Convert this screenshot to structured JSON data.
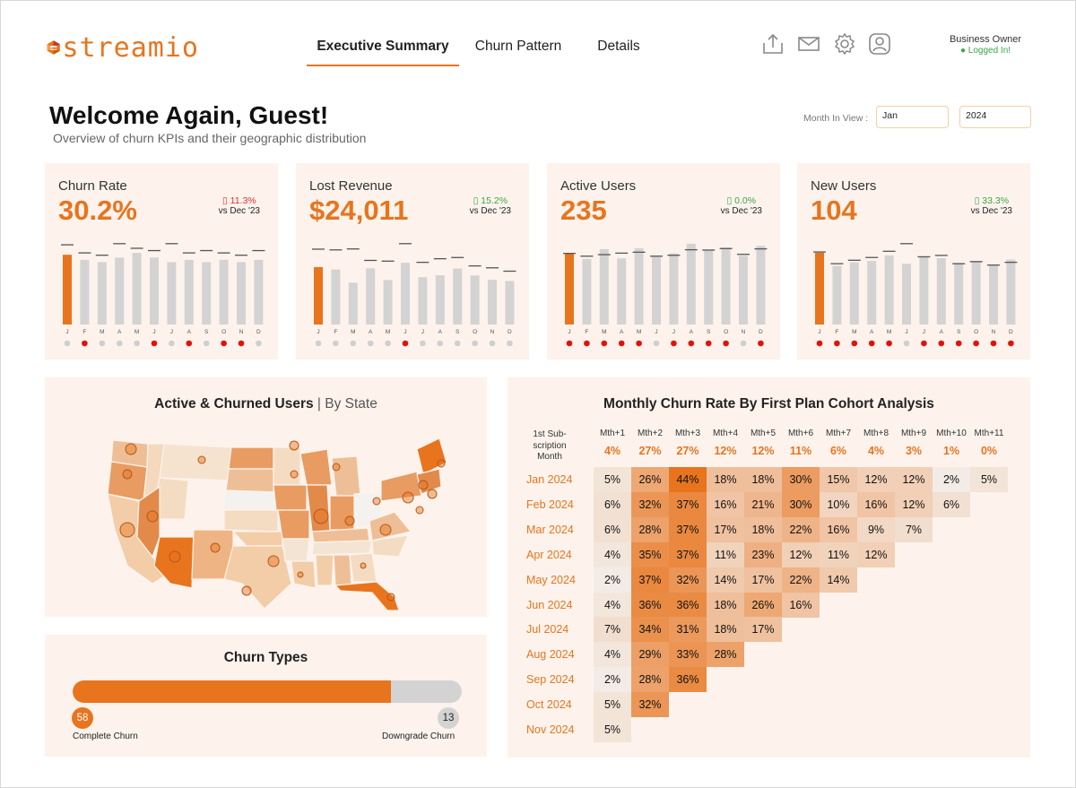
{
  "brand": {
    "name": "streamio",
    "accent": "#e8741e"
  },
  "nav": {
    "tabs": [
      {
        "label": "Executive Summary",
        "active": true
      },
      {
        "label": "Churn Pattern",
        "active": false
      },
      {
        "label": "Details",
        "active": false
      }
    ]
  },
  "header_icons": [
    "share-icon",
    "mail-icon",
    "gear-icon",
    "user-icon"
  ],
  "user": {
    "role": "Business Owner",
    "status": "● Logged In!"
  },
  "page": {
    "title": "Welcome Again, Guest!",
    "subtitle": "Overview of churn KPIs and their geographic distribution"
  },
  "filters": {
    "month_label": "Month In View :",
    "month": "Jan",
    "year": "2024"
  },
  "months": [
    "J",
    "F",
    "M",
    "A",
    "M",
    "J",
    "J",
    "A",
    "S",
    "O",
    "N",
    "D"
  ],
  "kpis": [
    {
      "title": "Churn Rate",
      "value": "30.2%",
      "delta": "▯ 11.3%",
      "delta_dir": "red",
      "compare": "vs Dec '23",
      "bars": [
        30.2,
        28,
        27,
        29,
        31,
        29,
        27,
        28,
        27,
        28,
        27,
        28
      ],
      "refs": [
        34.5,
        31,
        30,
        35,
        33,
        32,
        35,
        31,
        32,
        31,
        30,
        32
      ],
      "flags": [
        0,
        1,
        0,
        0,
        0,
        1,
        0,
        1,
        0,
        1,
        1,
        0
      ]
    },
    {
      "title": "Lost Revenue",
      "value": "$24,011",
      "delta": "▯ 15.2%",
      "delta_dir": "green",
      "compare": "vs Dec '23",
      "bars": [
        24011,
        23000,
        17500,
        23500,
        18600,
        25800,
        19800,
        20600,
        23400,
        20500,
        18700,
        18200
      ],
      "refs": [
        31500,
        31200,
        31600,
        26800,
        26500,
        33800,
        26000,
        27500,
        28000,
        24500,
        23700,
        22300
      ],
      "flags": [
        0,
        0,
        0,
        0,
        0,
        1,
        0,
        0,
        0,
        0,
        0,
        0
      ]
    },
    {
      "title": "Active Users",
      "value": "235",
      "delta": "▯ 0.0%",
      "delta_dir": "green",
      "compare": "vs Dec '23",
      "bars": [
        235,
        215,
        247,
        217,
        250,
        222,
        233,
        265,
        243,
        252,
        225,
        258
      ],
      "refs": [
        233,
        224,
        229,
        234,
        237,
        224,
        227,
        245,
        244,
        249,
        230,
        248
      ],
      "flags": [
        1,
        1,
        1,
        1,
        1,
        0,
        1,
        1,
        1,
        1,
        0,
        1
      ]
    },
    {
      "title": "New Users",
      "value": "104",
      "delta": "▯ 33.3%",
      "delta_dir": "green",
      "compare": "vs Dec '23",
      "bars": [
        104,
        85,
        90,
        92,
        100,
        88,
        98,
        96,
        89,
        92,
        86,
        94
      ],
      "refs": [
        105,
        88,
        93,
        97,
        106,
        117,
        98,
        100,
        88,
        91,
        86,
        90
      ],
      "flags": [
        1,
        1,
        1,
        1,
        1,
        0,
        1,
        1,
        1,
        1,
        1,
        1
      ]
    }
  ],
  "map": {
    "title_bold": "Active & Churned Users",
    "title_sep": " | ",
    "title_light": "By State"
  },
  "churn_types": {
    "title": "Churn Types",
    "complete": 58,
    "downgrade": 13,
    "complete_label": "Complete Churn",
    "downgrade_label": "Downgrade Churn"
  },
  "cohort": {
    "title": "Monthly Churn Rate By First Plan Cohort Analysis",
    "corner": [
      "1st Sub-",
      "scription",
      "Month"
    ],
    "columns": [
      "Mth+1",
      "Mth+2",
      "Mth+3",
      "Mth+4",
      "Mth+5",
      "Mth+6",
      "Mth+7",
      "Mth+8",
      "Mth+9",
      "Mth+10",
      "Mth+11"
    ],
    "averages": [
      "4%",
      "27%",
      "27%",
      "12%",
      "12%",
      "11%",
      "6%",
      "4%",
      "3%",
      "1%",
      "0%"
    ],
    "rows": [
      {
        "label": "Jan 2024",
        "values": [
          5,
          26,
          44,
          18,
          18,
          30,
          15,
          12,
          12,
          2,
          5
        ]
      },
      {
        "label": "Feb 2024",
        "values": [
          6,
          32,
          37,
          16,
          21,
          30,
          10,
          16,
          12,
          6
        ]
      },
      {
        "label": "Mar 2024",
        "values": [
          6,
          28,
          37,
          17,
          18,
          22,
          16,
          9,
          7
        ]
      },
      {
        "label": "Apr 2024",
        "values": [
          4,
          35,
          37,
          11,
          23,
          12,
          11,
          12
        ]
      },
      {
        "label": "May 2024",
        "values": [
          2,
          37,
          32,
          14,
          17,
          22,
          14
        ]
      },
      {
        "label": "Jun 2024",
        "values": [
          4,
          36,
          36,
          18,
          26,
          16
        ]
      },
      {
        "label": "Jul 2024",
        "values": [
          7,
          34,
          31,
          18,
          17
        ]
      },
      {
        "label": "Aug 2024",
        "values": [
          4,
          29,
          33,
          28
        ]
      },
      {
        "label": "Sep 2024",
        "values": [
          2,
          28,
          36
        ]
      },
      {
        "label": "Oct 2024",
        "values": [
          5,
          32
        ]
      },
      {
        "label": "Nov 2024",
        "values": [
          5
        ]
      }
    ]
  }
}
